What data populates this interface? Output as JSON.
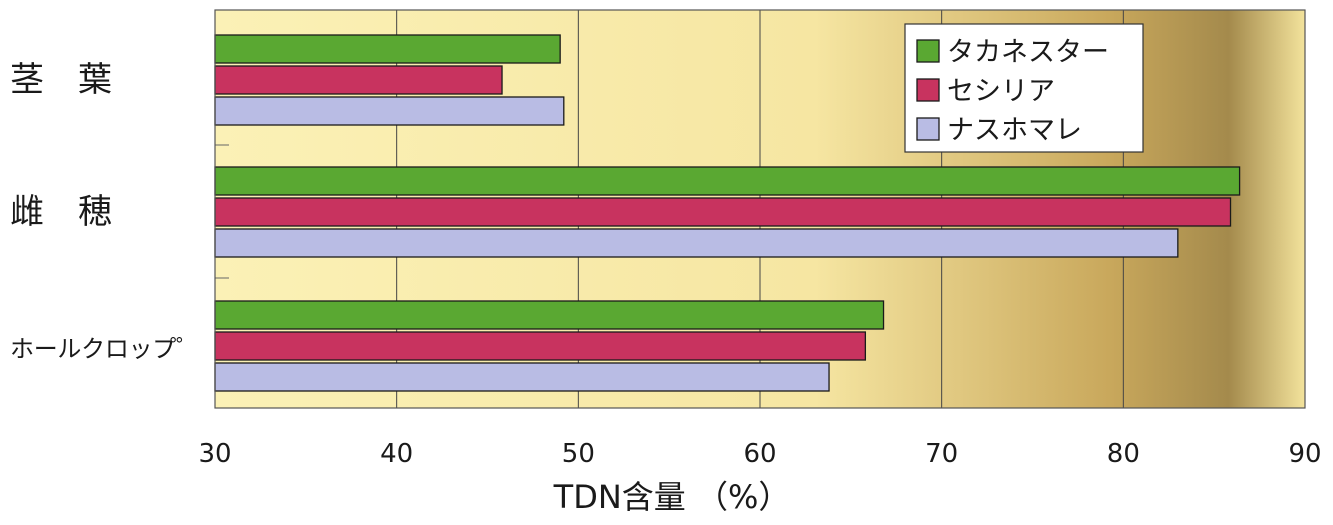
{
  "chart_data": {
    "type": "bar",
    "orientation": "horizontal",
    "title": "",
    "xlabel": "TDN含量 （%）",
    "ylabel": "",
    "categories": [
      "茎　葉",
      "雌　穂",
      "ホールクロップ゜"
    ],
    "xlim": [
      30,
      90
    ],
    "x_ticks": [
      "30",
      "40",
      "50",
      "60",
      "70",
      "80",
      "90"
    ],
    "grid": true,
    "legend_position": "top-right",
    "series": [
      {
        "name": "タカネスター",
        "color": "#5aa832",
        "values": [
          49.0,
          86.4,
          66.8
        ]
      },
      {
        "name": "セシリア",
        "color": "#c8335f",
        "values": [
          45.8,
          85.9,
          65.8
        ]
      },
      {
        "name": "ナスホマレ",
        "color": "#b9bce4",
        "values": [
          49.2,
          83.0,
          63.8
        ]
      }
    ]
  }
}
